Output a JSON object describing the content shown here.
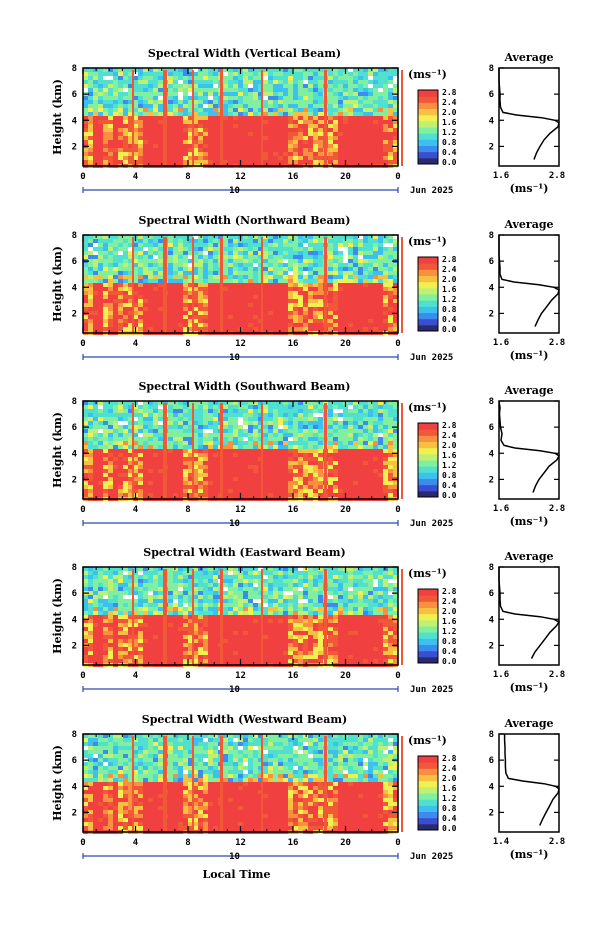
{
  "figure": {
    "xlabel": "Local Time",
    "date_label": "Jun 2025",
    "day_label": "10"
  },
  "colors": {
    "colorscale": [
      "#2a2a6e",
      "#3a4fd0",
      "#3c8cf0",
      "#3cc0f0",
      "#50e0d0",
      "#80f0a0",
      "#c0f070",
      "#f0f050",
      "#f8c040",
      "#f89040",
      "#f05838",
      "#f04040"
    ]
  },
  "chart_data": [
    {
      "type": "heatmap",
      "title": "Spectral Width (Vertical Beam)",
      "xlabel": "",
      "ylabel": "Height (km)",
      "xlim": [
        0,
        24
      ],
      "ylim": [
        0.5,
        8
      ],
      "xticks": [
        "0",
        "4",
        "8",
        "12",
        "16",
        "20",
        "0"
      ],
      "yticks": [
        "2",
        "4",
        "6",
        "8"
      ],
      "colorbar": {
        "label": "(ms⁻¹)",
        "range": [
          0.0,
          2.8
        ],
        "ticks": [
          "2.8",
          "2.4",
          "2.0",
          "1.6",
          "1.2",
          "0.8",
          "0.4",
          "0.0"
        ]
      },
      "profile": {
        "title": "Average",
        "xlabel": "(ms⁻¹)",
        "xlim": [
          1.6,
          2.8
        ],
        "xticks": [
          "1.6",
          "2.8"
        ],
        "ylim": [
          0.5,
          8
        ],
        "yticks": [
          "2",
          "4",
          "6",
          "8"
        ],
        "height": [
          1.0,
          1.5,
          2.0,
          2.5,
          3.0,
          3.5,
          3.8,
          4.0,
          4.2,
          4.4,
          4.6,
          5.0,
          5.5,
          6.0,
          6.5,
          7.0,
          7.5,
          8.0
        ],
        "value": [
          2.3,
          2.35,
          2.42,
          2.5,
          2.62,
          2.78,
          2.8,
          2.72,
          2.45,
          1.95,
          1.68,
          1.63,
          1.62,
          1.62,
          1.61,
          1.6,
          1.6,
          1.6
        ]
      }
    },
    {
      "type": "heatmap",
      "title": "Spectral Width (Northward Beam)",
      "xlabel": "",
      "ylabel": "Height (km)",
      "xlim": [
        0,
        24
      ],
      "ylim": [
        0.5,
        8
      ],
      "xticks": [
        "0",
        "4",
        "8",
        "12",
        "16",
        "20",
        "0"
      ],
      "yticks": [
        "2",
        "4",
        "6",
        "8"
      ],
      "colorbar": {
        "label": "(ms⁻¹)",
        "range": [
          0.0,
          2.8
        ],
        "ticks": [
          "2.8",
          "2.4",
          "2.0",
          "1.6",
          "1.2",
          "0.8",
          "0.4",
          "0.0"
        ]
      },
      "profile": {
        "title": "Average",
        "xlabel": "(ms⁻¹)",
        "xlim": [
          1.6,
          2.8
        ],
        "xticks": [
          "1.6",
          "2.8"
        ],
        "ylim": [
          0.5,
          8
        ],
        "yticks": [
          "2",
          "4",
          "6",
          "8"
        ],
        "height": [
          1.0,
          1.5,
          2.0,
          2.5,
          3.0,
          3.5,
          3.8,
          4.0,
          4.2,
          4.4,
          4.6,
          5.0,
          5.5,
          6.0,
          6.5,
          7.0,
          7.5,
          8.0
        ],
        "value": [
          2.32,
          2.38,
          2.45,
          2.55,
          2.65,
          2.78,
          2.8,
          2.7,
          2.4,
          1.9,
          1.66,
          1.62,
          1.62,
          1.61,
          1.6,
          1.6,
          1.6,
          1.6
        ]
      }
    },
    {
      "type": "heatmap",
      "title": "Spectral Width (Southward Beam)",
      "xlabel": "",
      "ylabel": "Height (km)",
      "xlim": [
        0,
        24
      ],
      "ylim": [
        0.5,
        8
      ],
      "xticks": [
        "0",
        "4",
        "8",
        "12",
        "16",
        "20",
        "0"
      ],
      "yticks": [
        "2",
        "4",
        "6",
        "8"
      ],
      "colorbar": {
        "label": "(ms⁻¹)",
        "range": [
          0.0,
          2.8
        ],
        "ticks": [
          "2.8",
          "2.4",
          "2.0",
          "1.6",
          "1.2",
          "0.8",
          "0.4",
          "0.0"
        ]
      },
      "profile": {
        "title": "Average",
        "xlabel": "(ms⁻¹)",
        "xlim": [
          1.6,
          2.8
        ],
        "xticks": [
          "1.6",
          "2.8"
        ],
        "ylim": [
          0.5,
          8
        ],
        "yticks": [
          "2",
          "4",
          "6",
          "8"
        ],
        "height": [
          1.0,
          1.5,
          2.0,
          2.5,
          3.0,
          3.5,
          3.8,
          4.0,
          4.2,
          4.4,
          4.6,
          5.0,
          5.5,
          6.0,
          6.5,
          7.0,
          7.5,
          8.0
        ],
        "value": [
          2.28,
          2.33,
          2.4,
          2.5,
          2.6,
          2.76,
          2.8,
          2.72,
          2.42,
          1.92,
          1.7,
          1.64,
          1.66,
          1.63,
          1.62,
          1.61,
          1.62,
          1.6
        ]
      }
    },
    {
      "type": "heatmap",
      "title": "Spectral Width (Eastward Beam)",
      "xlabel": "",
      "ylabel": "Height (km)",
      "xlim": [
        0,
        24
      ],
      "ylim": [
        0.5,
        8
      ],
      "xticks": [
        "0",
        "4",
        "8",
        "12",
        "16",
        "20",
        "0"
      ],
      "yticks": [
        "2",
        "4",
        "6",
        "8"
      ],
      "colorbar": {
        "label": "(ms⁻¹)",
        "range": [
          0.0,
          2.8
        ],
        "ticks": [
          "2.8",
          "2.4",
          "2.0",
          "1.6",
          "1.2",
          "0.8",
          "0.4",
          "0.0"
        ]
      },
      "profile": {
        "title": "Average",
        "xlabel": "(ms⁻¹)",
        "xlim": [
          1.6,
          2.8
        ],
        "xticks": [
          "1.6",
          "2.8"
        ],
        "ylim": [
          0.5,
          8
        ],
        "yticks": [
          "2",
          "4",
          "6",
          "8"
        ],
        "height": [
          1.0,
          1.5,
          2.0,
          2.5,
          3.0,
          3.5,
          3.8,
          4.0,
          4.2,
          4.4,
          4.6,
          5.0,
          5.5,
          6.0,
          6.5,
          7.0,
          7.5,
          8.0
        ],
        "value": [
          2.25,
          2.32,
          2.42,
          2.52,
          2.62,
          2.75,
          2.8,
          2.7,
          2.42,
          1.92,
          1.68,
          1.63,
          1.62,
          1.62,
          1.61,
          1.6,
          1.6,
          1.6
        ]
      }
    },
    {
      "type": "heatmap",
      "title": "Spectral Width (Westward Beam)",
      "xlabel": "Local Time",
      "ylabel": "Height (km)",
      "xlim": [
        0,
        24
      ],
      "ylim": [
        0.5,
        8
      ],
      "xticks": [
        "0",
        "4",
        "8",
        "12",
        "16",
        "20",
        "0"
      ],
      "yticks": [
        "2",
        "4",
        "6",
        "8"
      ],
      "colorbar": {
        "label": "(ms⁻¹)",
        "range": [
          0.0,
          2.8
        ],
        "ticks": [
          "2.8",
          "2.4",
          "2.0",
          "1.6",
          "1.2",
          "0.8",
          "0.4",
          "0.0"
        ]
      },
      "profile": {
        "title": "Average",
        "xlabel": "(ms⁻¹)",
        "xlim": [
          1.4,
          2.8
        ],
        "xticks": [
          "1.4",
          "2.8"
        ],
        "ylim": [
          0.5,
          8
        ],
        "yticks": [
          "2",
          "4",
          "6",
          "8"
        ],
        "height": [
          1.0,
          1.5,
          2.0,
          2.5,
          3.0,
          3.5,
          3.8,
          4.0,
          4.2,
          4.4,
          4.6,
          5.0,
          5.5,
          6.0,
          6.5,
          7.0,
          7.5,
          8.0
        ],
        "value": [
          2.35,
          2.42,
          2.5,
          2.58,
          2.66,
          2.78,
          2.8,
          2.72,
          2.45,
          1.95,
          1.62,
          1.56,
          1.55,
          1.55,
          1.54,
          1.54,
          1.53,
          1.53
        ]
      }
    }
  ]
}
